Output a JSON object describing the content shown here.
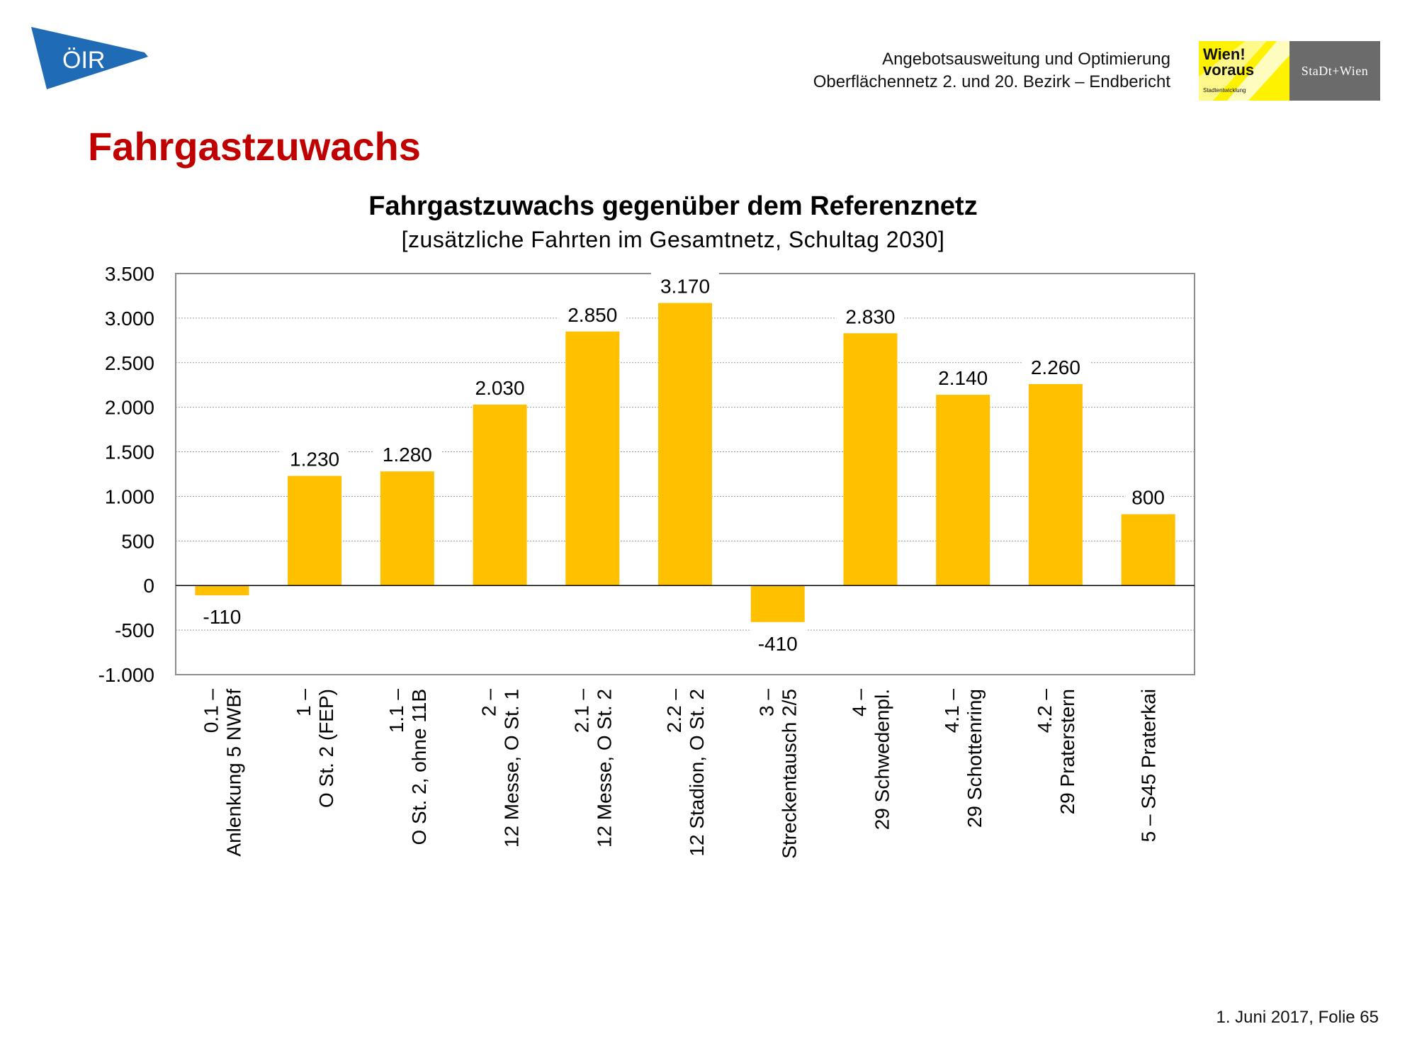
{
  "header": {
    "line1": "Angebotsausweitung und Optimierung",
    "line2": "Oberflächennetz 2. und 20. Bezirk – Endbericht"
  },
  "logos": {
    "oir": "ÖIR",
    "wien_line1": "Wien!",
    "wien_line2": "voraus",
    "wien_sub": "Stadtentwicklung",
    "stadt_wien": "StaDt+Wien"
  },
  "page_title": "Fahrgastzuwachs",
  "footer": "1. Juni 2017, Folie 65",
  "colors": {
    "title_red": "#c00000",
    "bar": "#ffc000",
    "oir_blue": "#1f6bb5",
    "wien_yellow": "#fff200"
  },
  "chart_data": {
    "type": "bar",
    "title": "Fahrgastzuwachs gegenüber dem Referenznetz",
    "subtitle": "[zusätzliche Fahrten im Gesamtnetz, Schultag 2030]",
    "xlabel": "",
    "ylabel": "",
    "ylim": [
      -1000,
      3500
    ],
    "yticks": [
      -1000,
      -500,
      0,
      500,
      1000,
      1500,
      2000,
      2500,
      3000,
      3500
    ],
    "ytick_labels": [
      "-1.000",
      "-500",
      "0",
      "500",
      "1.000",
      "1.500",
      "2.000",
      "2.500",
      "3.000",
      "3.500"
    ],
    "grid": true,
    "categories": [
      [
        "0.1 –",
        "Anlenkung 5 NWBf"
      ],
      [
        "1 –",
        "O St. 2 (FEP)"
      ],
      [
        "1.1 –",
        "O St. 2, ohne 11B"
      ],
      [
        "2 –",
        "12 Messe, O St. 1"
      ],
      [
        "2.1 –",
        "12 Messe, O St. 2"
      ],
      [
        "2.2 –",
        "12 Stadion, O St. 2"
      ],
      [
        "3 –",
        "Streckentausch 2/5"
      ],
      [
        "4 –",
        "29 Schwedenpl."
      ],
      [
        "4.1 –",
        "29 Schottenring"
      ],
      [
        "4.2 –",
        "29 Praterstern"
      ],
      [
        "5 – S45 Praterkai"
      ]
    ],
    "values": [
      -110,
      1230,
      1280,
      2030,
      2850,
      3170,
      -410,
      2830,
      2140,
      2260,
      800
    ],
    "value_labels": [
      "-110",
      "1.230",
      "1.280",
      "2.030",
      "2.850",
      "3.170",
      "-410",
      "2.830",
      "2.140",
      "2.260",
      "800"
    ]
  }
}
